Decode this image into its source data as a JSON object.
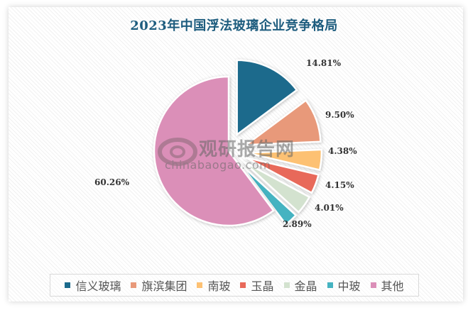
{
  "chart_data": {
    "type": "pie",
    "title": "2023年中国浮法玻璃企业竞争格局",
    "categories": [
      "信义玻璃",
      "旗滨集团",
      "南玻",
      "玉晶",
      "金晶",
      "中玻",
      "其他"
    ],
    "values": [
      14.81,
      9.5,
      4.38,
      4.15,
      4.01,
      2.89,
      60.26
    ],
    "labels": [
      "14.81%",
      "9.50%",
      "4.38%",
      "4.15%",
      "4.01%",
      "2.89%",
      "60.26%"
    ],
    "colors": [
      "#1b6a8c",
      "#e8997a",
      "#fdc173",
      "#e8695a",
      "#d3e2cf",
      "#45b3c1",
      "#db8fb8"
    ],
    "legend_position": "bottom",
    "exploded": true
  },
  "watermark": {
    "cn": "观研报告网",
    "en": "chinabaogao.com"
  }
}
